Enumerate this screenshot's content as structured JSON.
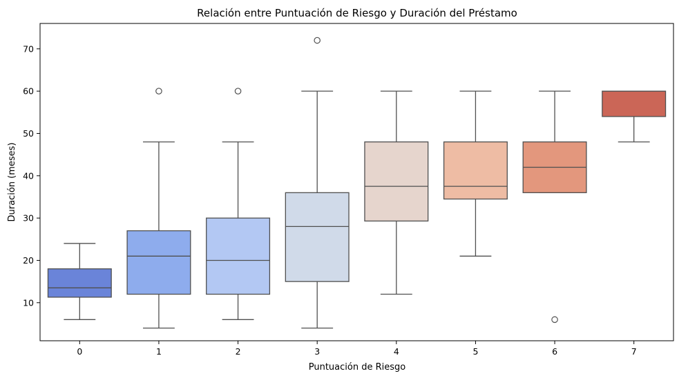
{
  "chart_data": {
    "type": "box",
    "title": "Relación entre Puntuación de Riesgo y Duración del Préstamo",
    "xlabel": "Puntuación de Riesgo",
    "ylabel": "Duración (meses)",
    "ylim": [
      1,
      76
    ],
    "yticks": [
      "10",
      "20",
      "30",
      "40",
      "50",
      "60",
      "70"
    ],
    "grid": false,
    "categories": [
      "0",
      "1",
      "2",
      "3",
      "4",
      "5",
      "6",
      "7"
    ],
    "boxes": [
      {
        "category": "0",
        "whisker_low": 6,
        "q1": 11.3,
        "median": 13.5,
        "q3": 18,
        "whisker_high": 24,
        "outliers": [],
        "color": "#6a84d9"
      },
      {
        "category": "1",
        "whisker_low": 4,
        "q1": 12,
        "median": 21,
        "q3": 27,
        "whisker_high": 48,
        "outliers": [
          60
        ],
        "color": "#8eaced"
      },
      {
        "category": "2",
        "whisker_low": 6,
        "q1": 12,
        "median": 20,
        "q3": 30,
        "whisker_high": 48,
        "outliers": [
          60
        ],
        "color": "#b3c8f3"
      },
      {
        "category": "3",
        "whisker_low": 4,
        "q1": 15,
        "median": 28,
        "q3": 36,
        "whisker_high": 60,
        "outliers": [
          72
        ],
        "color": "#d0dae9"
      },
      {
        "category": "4",
        "whisker_low": 12,
        "q1": 29.3,
        "median": 37.5,
        "q3": 48,
        "whisker_high": 60,
        "outliers": [],
        "color": "#e6d5cd"
      },
      {
        "category": "5",
        "whisker_low": 21,
        "q1": 34.5,
        "median": 37.5,
        "q3": 48,
        "whisker_high": 60,
        "outliers": [],
        "color": "#eebca4"
      },
      {
        "category": "6",
        "whisker_low": 36,
        "q1": 36,
        "median": 42,
        "q3": 48,
        "whisker_high": 60,
        "outliers": [
          6
        ],
        "color": "#e3977d"
      },
      {
        "category": "7",
        "whisker_low": 48,
        "q1": 54,
        "median": 60,
        "q3": 60,
        "whisker_high": 60,
        "outliers": [],
        "color": "#cb6657"
      }
    ]
  }
}
